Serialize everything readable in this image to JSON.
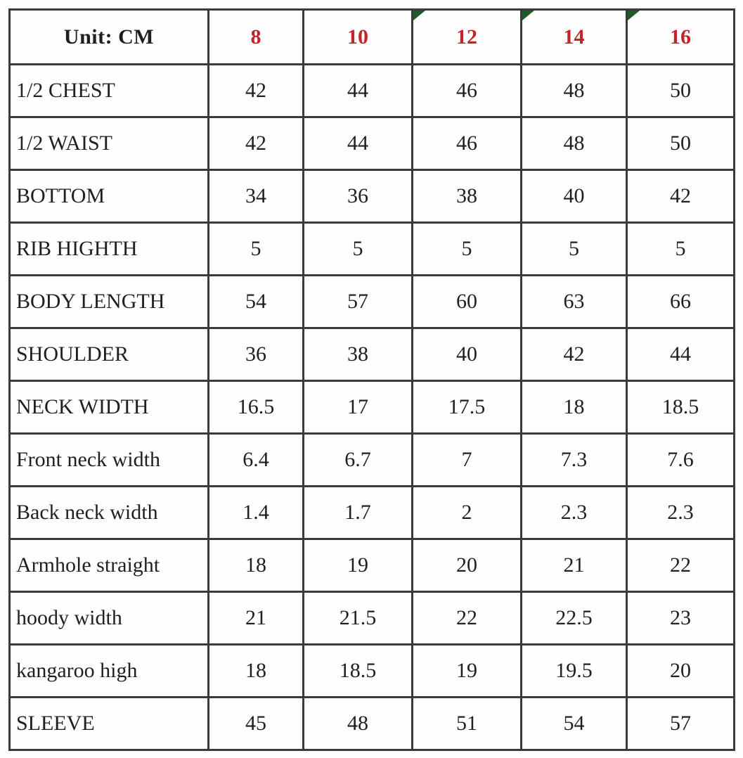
{
  "table": {
    "unit_label": "Unit: CM",
    "size_headers": [
      "8",
      "10",
      "12",
      "14",
      "16"
    ],
    "flagged_size_headers": [
      "12",
      "14",
      "16"
    ],
    "rows": [
      {
        "label": "1/2 CHEST",
        "values": [
          "42",
          "44",
          "46",
          "48",
          "50"
        ]
      },
      {
        "label": "1/2 WAIST",
        "values": [
          "42",
          "44",
          "46",
          "48",
          "50"
        ]
      },
      {
        "label": "BOTTOM",
        "values": [
          "34",
          "36",
          "38",
          "40",
          "42"
        ]
      },
      {
        "label": "RIB HIGHTH",
        "values": [
          "5",
          "5",
          "5",
          "5",
          "5"
        ]
      },
      {
        "label": "BODY LENGTH",
        "values": [
          "54",
          "57",
          "60",
          "63",
          "66"
        ]
      },
      {
        "label": "SHOULDER",
        "values": [
          "36",
          "38",
          "40",
          "42",
          "44"
        ]
      },
      {
        "label": "NECK WIDTH",
        "values": [
          "16.5",
          "17",
          "17.5",
          "18",
          "18.5"
        ]
      },
      {
        "label": "Front neck width",
        "values": [
          "6.4",
          "6.7",
          "7",
          "7.3",
          "7.6"
        ]
      },
      {
        "label": "Back neck width",
        "values": [
          "1.4",
          "1.7",
          "2",
          "2.3",
          "2.3"
        ]
      },
      {
        "label": "Armhole straight",
        "values": [
          "18",
          "19",
          "20",
          "21",
          "22"
        ]
      },
      {
        "label": "hoody width",
        "values": [
          "21",
          "21.5",
          "22",
          "22.5",
          "23"
        ]
      },
      {
        "label": "kangaroo high",
        "values": [
          "18",
          "18.5",
          "19",
          "19.5",
          "20"
        ]
      },
      {
        "label": "SLEEVE",
        "values": [
          "45",
          "48",
          "51",
          "54",
          "57"
        ]
      }
    ],
    "colors": {
      "size_header_text": "#c3232b",
      "body_text": "#1f1f1f",
      "border": "#3a3a3a",
      "corner_flag": "#1e5b28",
      "cell_background": "#fefefe"
    }
  }
}
